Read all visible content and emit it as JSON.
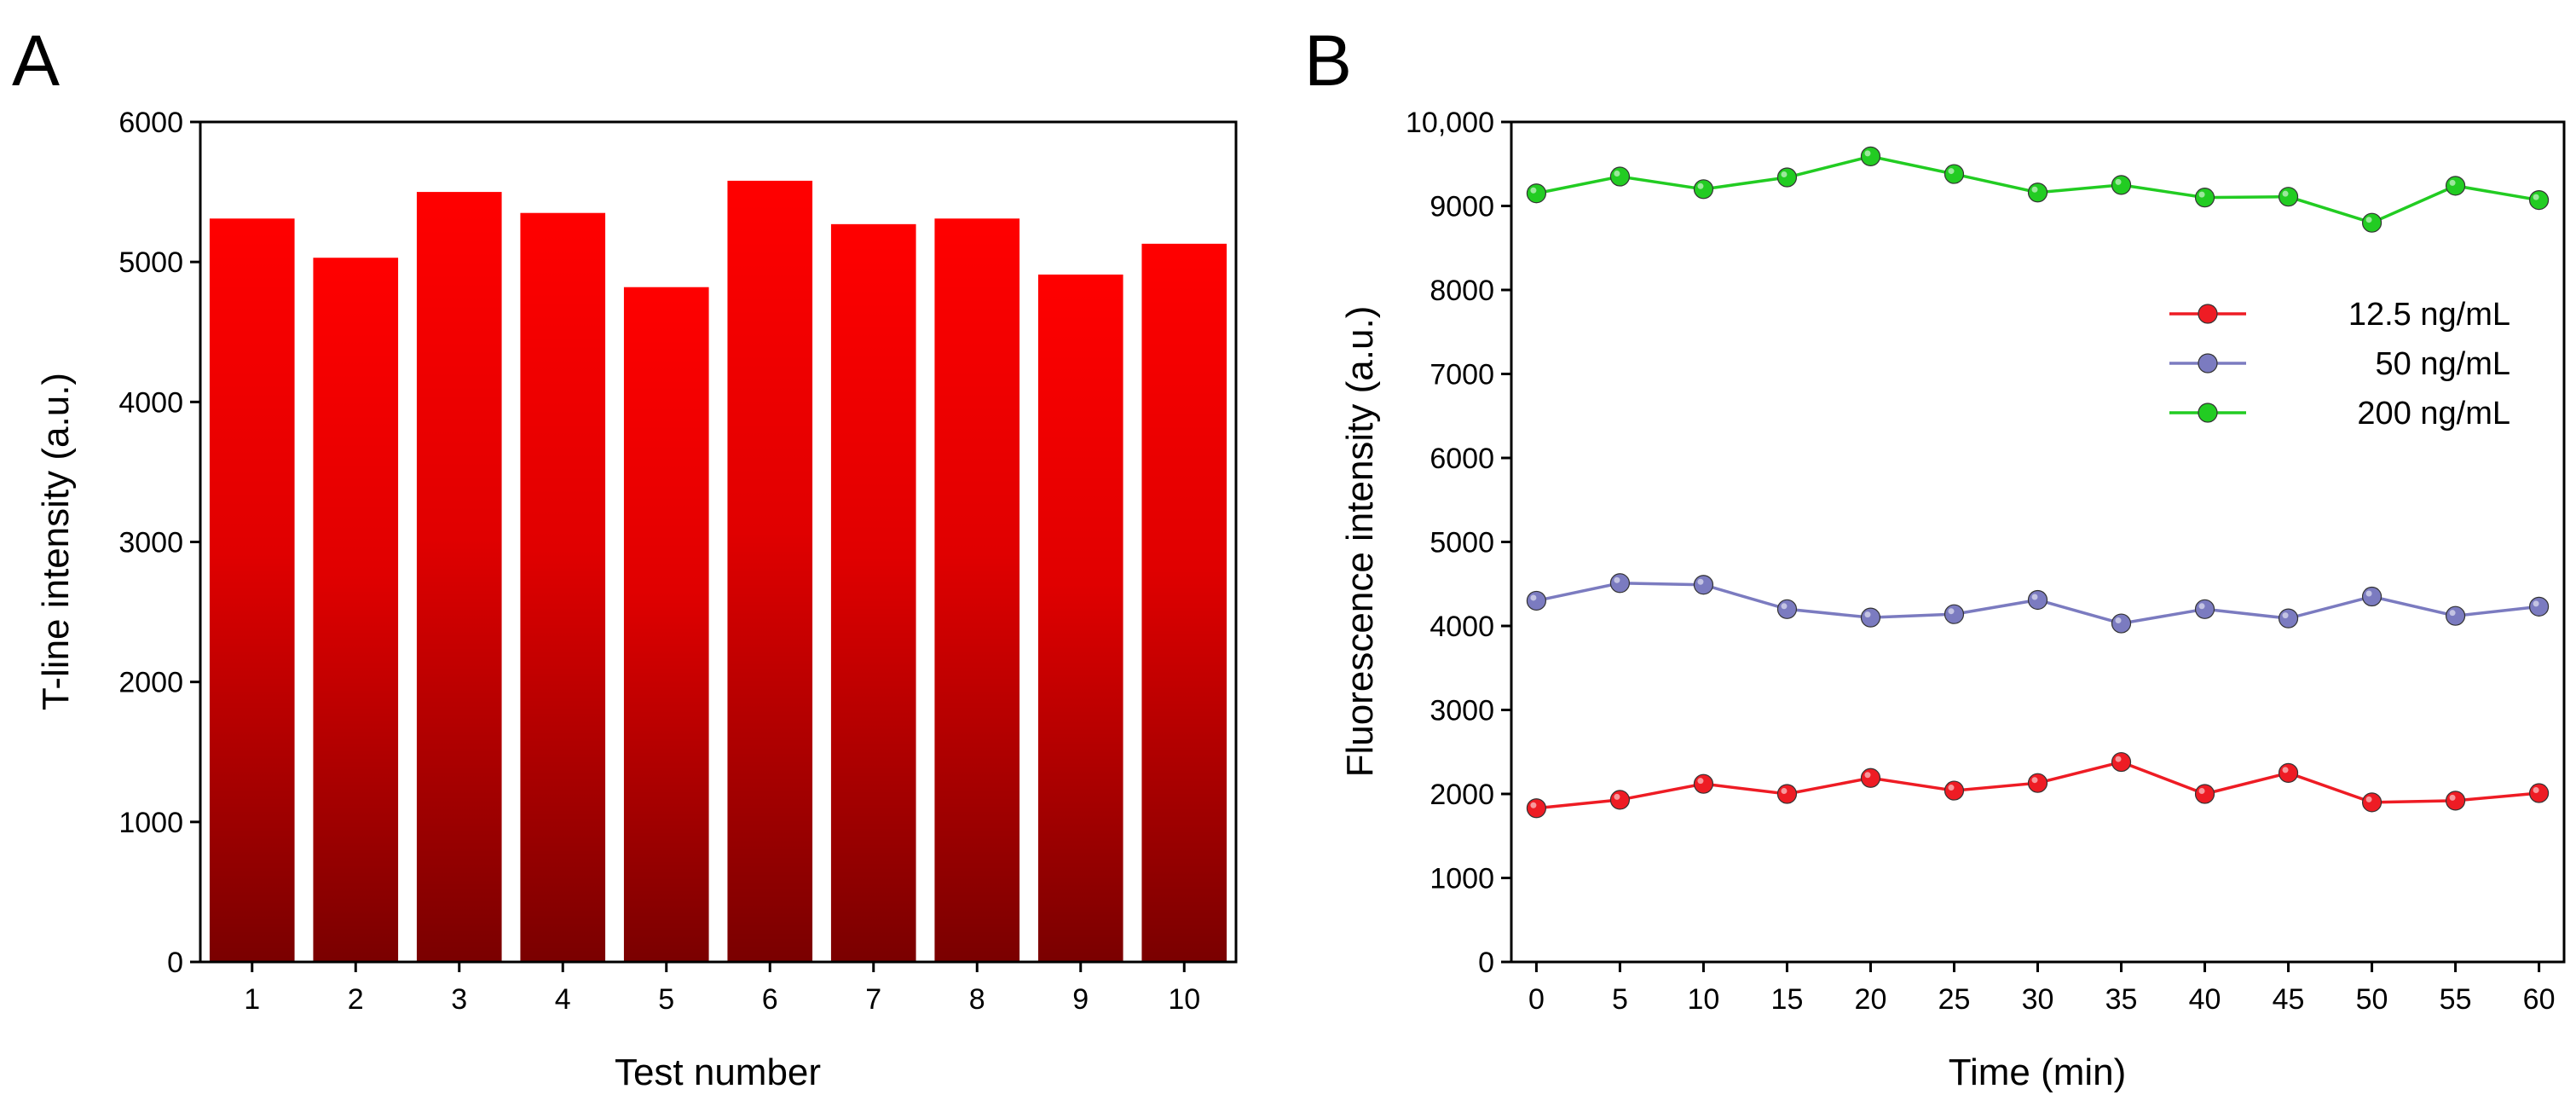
{
  "panel_a_letter": "A",
  "panel_b_letter": "B",
  "chart_data": [
    {
      "type": "bar",
      "panel": "A",
      "xlabel": "Test number",
      "ylabel": "T-line intensity (a.u.)",
      "categories": [
        "1",
        "2",
        "3",
        "4",
        "5",
        "6",
        "7",
        "8",
        "9",
        "10"
      ],
      "values": [
        5310,
        5030,
        5500,
        5350,
        4820,
        5580,
        5270,
        5310,
        4910,
        5130
      ],
      "ylim": [
        0,
        6000
      ],
      "yticks": [
        0,
        1000,
        2000,
        3000,
        4000,
        5000,
        6000
      ],
      "ytick_labels": [
        "0",
        "1000",
        "2000",
        "3000",
        "4000",
        "5000",
        "6000"
      ],
      "bar_color_top": "#ff0000",
      "bar_color_bottom": "#7a0000"
    },
    {
      "type": "line",
      "panel": "B",
      "xlabel": "Time (min)",
      "ylabel": "Fluorescence intensity (a.u.)",
      "x": [
        0,
        5,
        10,
        15,
        20,
        25,
        30,
        35,
        40,
        45,
        50,
        55,
        60
      ],
      "xlim": [
        -1.5,
        61.5
      ],
      "xticks": [
        0,
        5,
        10,
        15,
        20,
        25,
        30,
        35,
        40,
        45,
        50,
        55,
        60
      ],
      "xtick_labels": [
        "0",
        "5",
        "10",
        "15",
        "20",
        "25",
        "30",
        "35",
        "40",
        "45",
        "50",
        "55",
        "60"
      ],
      "ylim": [
        0,
        10000
      ],
      "yticks": [
        0,
        1000,
        2000,
        3000,
        4000,
        5000,
        6000,
        7000,
        8000,
        9000,
        10000
      ],
      "ytick_labels": [
        "0",
        "1000",
        "2000",
        "3000",
        "4000",
        "5000",
        "6000",
        "7000",
        "8000",
        "9000",
        "10,000"
      ],
      "legend_position": "upper-right",
      "series": [
        {
          "name": "12.5 ng/mL",
          "color": "#ee1c24",
          "values": [
            1830,
            1930,
            2120,
            2000,
            2190,
            2040,
            2130,
            2380,
            2000,
            2250,
            1900,
            1920,
            2010
          ]
        },
        {
          "name": "50 ng/mL",
          "color": "#7b7bc0",
          "values": [
            4300,
            4510,
            4490,
            4200,
            4100,
            4140,
            4310,
            4030,
            4200,
            4090,
            4350,
            4120,
            4230
          ]
        },
        {
          "name": "200 ng/mL",
          "color": "#22cc22",
          "values": [
            9150,
            9350,
            9200,
            9340,
            9590,
            9380,
            9160,
            9250,
            9100,
            9110,
            8800,
            9240,
            9070
          ]
        }
      ]
    }
  ]
}
